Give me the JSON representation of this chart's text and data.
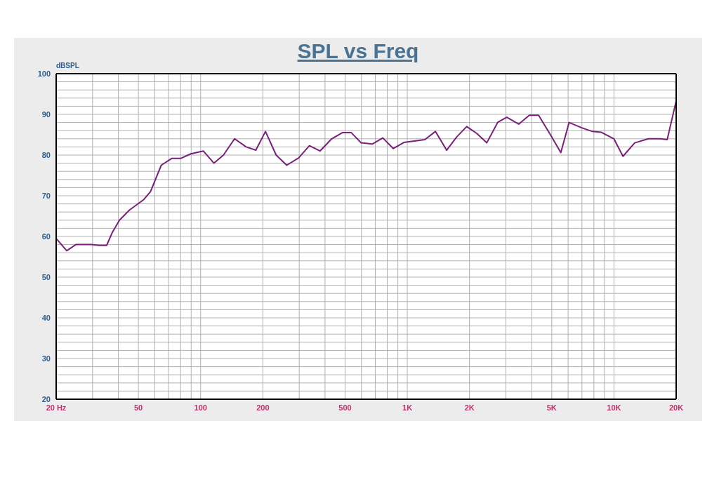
{
  "chart_data": {
    "type": "line",
    "title": "SPL vs Freq",
    "ylabel": "dBSPL",
    "log": "x",
    "grid": true,
    "marker": "none",
    "line_style": "solid",
    "xlim": [
      20,
      20000
    ],
    "ylim": [
      20,
      100
    ],
    "xticks": [
      {
        "value": 20,
        "label": "20  Hz"
      },
      {
        "value": 30,
        "label": null
      },
      {
        "value": 40,
        "label": null
      },
      50,
      {
        "value": 60,
        "label": null
      },
      {
        "value": 70,
        "label": null
      },
      {
        "value": 80,
        "label": null
      },
      {
        "value": 90,
        "label": null
      },
      100,
      200,
      {
        "value": 300,
        "label": null
      },
      {
        "value": 400,
        "label": null
      },
      500,
      {
        "value": 600,
        "label": null
      },
      {
        "value": 700,
        "label": null
      },
      {
        "value": 800,
        "label": null
      },
      {
        "value": 900,
        "label": null
      },
      {
        "value": 1000,
        "label": "1K"
      },
      {
        "value": 2000,
        "label": "2K"
      },
      {
        "value": 3000,
        "label": null
      },
      {
        "value": 4000,
        "label": null
      },
      {
        "value": 5000,
        "label": "5K"
      },
      {
        "value": 6000,
        "label": null
      },
      {
        "value": 7000,
        "label": null
      },
      {
        "value": 8000,
        "label": null
      },
      {
        "value": 9000,
        "label": null
      },
      {
        "value": 10000,
        "label": "10K"
      },
      {
        "value": 20000,
        "label": "20K"
      }
    ],
    "yticks": [
      20,
      {
        "value": 22,
        "label": null
      },
      {
        "value": 24,
        "label": null
      },
      {
        "value": 26,
        "label": null
      },
      {
        "value": 28,
        "label": null
      },
      30,
      {
        "value": 32,
        "label": null
      },
      {
        "value": 34,
        "label": null
      },
      {
        "value": 36,
        "label": null
      },
      {
        "value": 38,
        "label": null
      },
      40,
      {
        "value": 42,
        "label": null
      },
      {
        "value": 44,
        "label": null
      },
      {
        "value": 46,
        "label": null
      },
      {
        "value": 48,
        "label": null
      },
      50,
      {
        "value": 52,
        "label": null
      },
      {
        "value": 54,
        "label": null
      },
      {
        "value": 56,
        "label": null
      },
      {
        "value": 58,
        "label": null
      },
      60,
      {
        "value": 62,
        "label": null
      },
      {
        "value": 64,
        "label": null
      },
      {
        "value": 66,
        "label": null
      },
      {
        "value": 68,
        "label": null
      },
      70,
      {
        "value": 72,
        "label": null
      },
      {
        "value": 74,
        "label": null
      },
      {
        "value": 76,
        "label": null
      },
      {
        "value": 78,
        "label": null
      },
      80,
      {
        "value": 82,
        "label": null
      },
      {
        "value": 84,
        "label": null
      },
      {
        "value": 86,
        "label": null
      },
      {
        "value": 88,
        "label": null
      },
      90,
      {
        "value": 92,
        "label": null
      },
      {
        "value": 94,
        "label": null
      },
      {
        "value": 96,
        "label": null
      },
      {
        "value": 98,
        "label": null
      },
      100
    ],
    "x": [
      20,
      22.5,
      24.9,
      29.6,
      32.3,
      35.1,
      37.4,
      40.5,
      45.3,
      52.9,
      57.2,
      64.5,
      72.6,
      80.3,
      89.7,
      103,
      116,
      129,
      146,
      166,
      185,
      206,
      232,
      261,
      298,
      336,
      378,
      431,
      485,
      536,
      598,
      677,
      761,
      856,
      962,
      1216,
      1368,
      1550,
      1738,
      1939,
      2171,
      2424,
      2744,
      3030,
      3461,
      3896,
      4318,
      4926,
      5533,
      6067,
      6981,
      7856,
      8695,
      9992,
      11060,
      12600,
      14700,
      16800,
      18100,
      20000
    ],
    "series": [
      {
        "color": "#7b1f7b",
        "values": [
          59.5,
          56.5,
          58,
          58,
          57.8,
          57.8,
          61,
          64,
          66.5,
          69,
          71,
          77.5,
          79.2,
          79.2,
          80.3,
          81,
          78,
          80,
          84,
          82,
          81.2,
          85.8,
          80,
          77.5,
          79.3,
          82.3,
          81,
          84,
          85.5,
          85.5,
          83,
          82.7,
          84.2,
          81.6,
          83.1,
          83.8,
          85.8,
          81.2,
          84.5,
          87,
          85.3,
          83,
          88.1,
          89.3,
          87.6,
          89.8,
          89.8,
          85,
          80.6,
          88,
          86.7,
          85.8,
          85.6,
          84,
          79.7,
          83,
          84,
          84,
          83.8,
          93.3
        ]
      }
    ]
  }
}
